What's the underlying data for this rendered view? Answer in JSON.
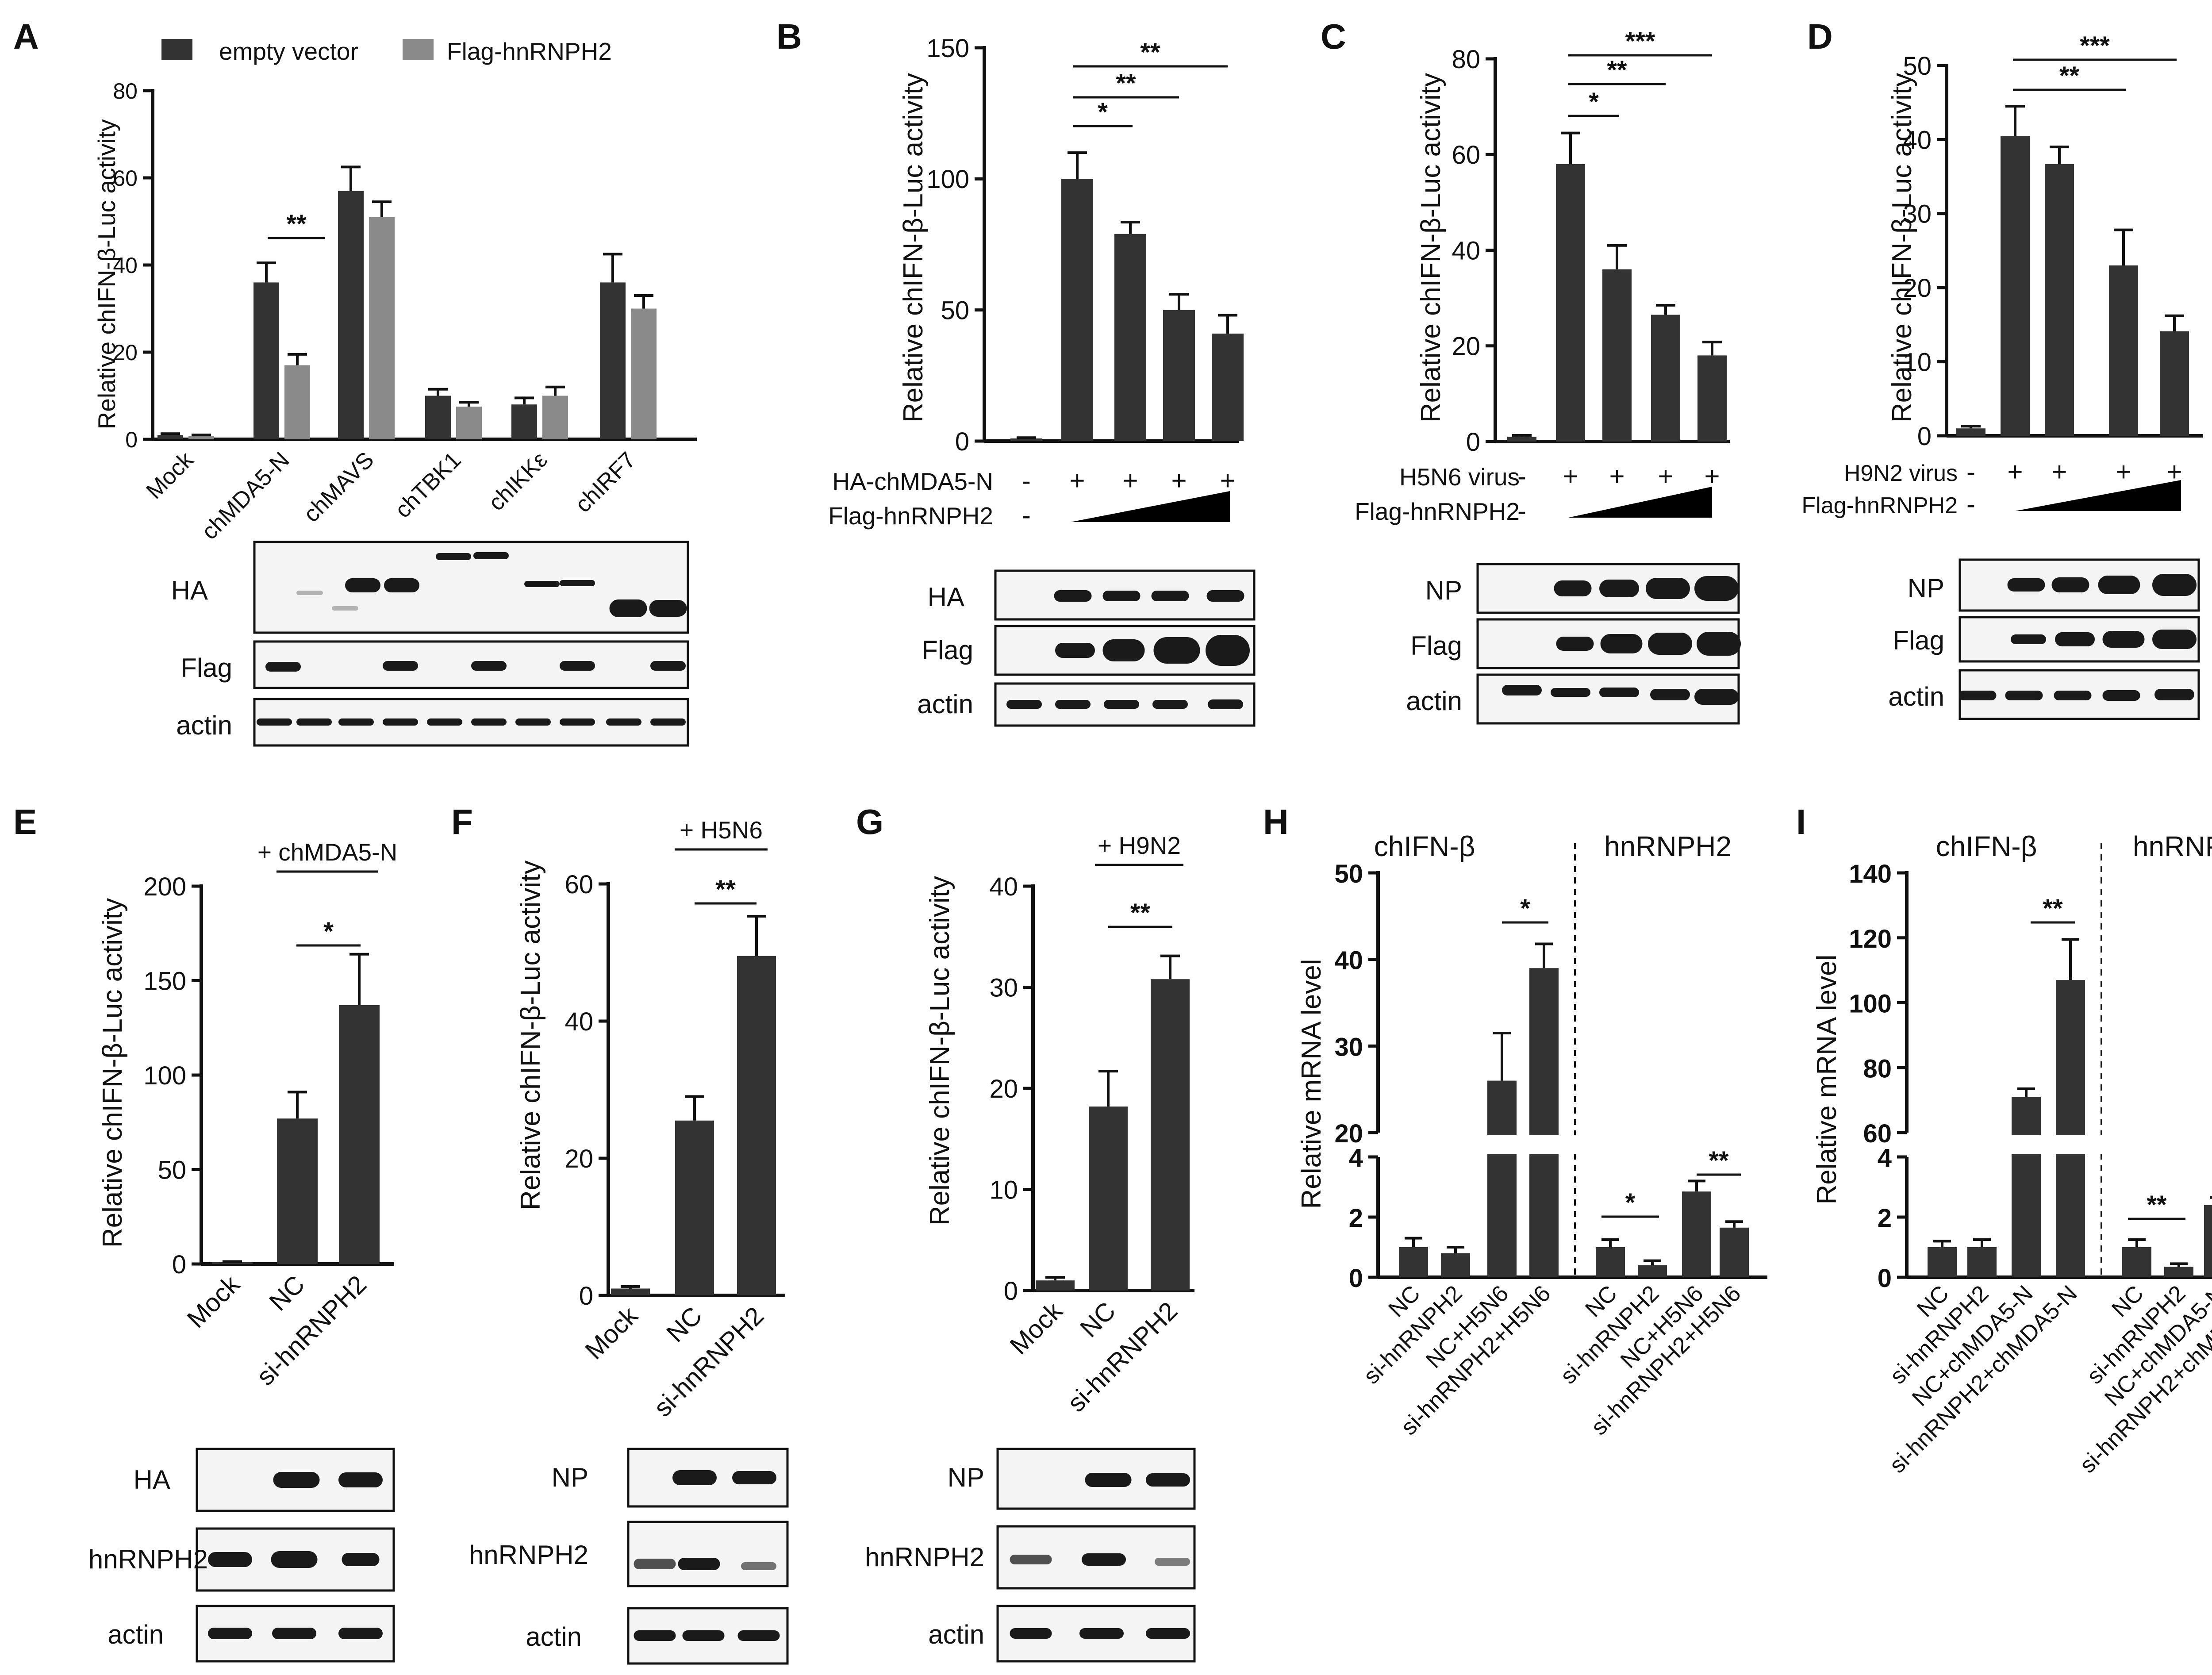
{
  "colors": {
    "dark": "#333333",
    "light": "#8a8a8a",
    "band": "#1a1a1a"
  },
  "panels": [
    {
      "id": "A",
      "letter": "A",
      "ylabel": "Relative chIFN-β-Luc activity",
      "legend": [
        "empty vector",
        "Flag-hnRNPH2"
      ],
      "chart_data": {
        "type": "bar",
        "categories": [
          "Mock",
          "chMDA5-N",
          "chMAVS",
          "chTBK1",
          "chIKKε",
          "chIRF7"
        ],
        "series": [
          {
            "name": "empty vector",
            "values": [
              1,
              36,
              57,
              10,
              8,
              36
            ],
            "errors": [
              0.3,
              4.5,
              5.5,
              1.5,
              1.5,
              6.5
            ]
          },
          {
            "name": "Flag-hnRNPH2",
            "values": [
              0.8,
              17,
              51,
              7.5,
              10,
              30
            ],
            "errors": [
              0.2,
              2.5,
              3.5,
              1,
              2,
              3
            ]
          }
        ],
        "ylim": [
          0,
          80
        ],
        "yticks": [
          0,
          20,
          40,
          60,
          80
        ]
      },
      "significance": [
        {
          "label": "**"
        }
      ],
      "blots": [
        "HA",
        "Flag",
        "actin"
      ]
    },
    {
      "id": "B",
      "letter": "B",
      "ylabel": "Relative chIFN-β-Luc activity",
      "chart_data": {
        "type": "bar",
        "categories": [
          "1",
          "2",
          "3",
          "4",
          "5"
        ],
        "values": [
          1,
          100,
          79,
          50,
          41
        ],
        "errors": [
          0.3,
          10,
          4.5,
          6,
          7
        ],
        "ylim": [
          0,
          150
        ],
        "yticks": [
          0,
          50,
          100,
          150
        ]
      },
      "significance": [
        {
          "label": "*"
        },
        {
          "label": "**"
        },
        {
          "label": "**"
        }
      ],
      "treatments": [
        {
          "label": "HA-chMDA5-N",
          "signs": [
            "-",
            "+",
            "+",
            "+",
            "+"
          ]
        },
        {
          "label": "Flag-hnRNPH2",
          "signs": [
            "-"
          ]
        }
      ],
      "blots": [
        "HA",
        "Flag",
        "actin"
      ]
    },
    {
      "id": "C",
      "letter": "C",
      "ylabel": "Relative chIFN-β-Luc activity",
      "chart_data": {
        "type": "bar",
        "categories": [
          "1",
          "2",
          "3",
          "4",
          "5"
        ],
        "values": [
          1,
          58,
          36,
          26.5,
          18
        ],
        "errors": [
          0.3,
          6.5,
          5,
          2,
          2.8
        ],
        "ylim": [
          0,
          80
        ],
        "yticks": [
          0,
          20,
          40,
          60,
          80
        ]
      },
      "significance": [
        {
          "label": "*"
        },
        {
          "label": "**"
        },
        {
          "label": "***"
        }
      ],
      "treatments": [
        {
          "label": "H5N6 virus",
          "signs": [
            "-",
            "+",
            "+",
            "+",
            "+"
          ]
        },
        {
          "label": "Flag-hnRNPH2",
          "signs": [
            "-"
          ]
        }
      ],
      "blots": [
        "NP",
        "Flag",
        "actin"
      ]
    },
    {
      "id": "D",
      "letter": "D",
      "ylabel": "Relative chIFN-β-Luc activity",
      "chart_data": {
        "type": "bar",
        "categories": [
          "1",
          "2",
          "3",
          "4",
          "5"
        ],
        "values": [
          1,
          40.5,
          36.7,
          23,
          14.1
        ],
        "errors": [
          0.3,
          4,
          2.3,
          4.8,
          2.1
        ],
        "ylim": [
          0,
          50
        ],
        "yticks": [
          0,
          10,
          20,
          30,
          40,
          50
        ]
      },
      "significance": [
        {
          "label": "**"
        },
        {
          "label": "***"
        }
      ],
      "treatments": [
        {
          "label": "H9N2 virus",
          "signs": [
            "-",
            "+",
            "+",
            "+",
            "+"
          ]
        },
        {
          "label": "Flag-hnRNPH2",
          "signs": [
            "-"
          ]
        }
      ],
      "blots": [
        "NP",
        "Flag",
        "actin"
      ]
    },
    {
      "id": "E",
      "letter": "E",
      "ylabel": "Relative chIFN-β-Luc activity",
      "chart_data": {
        "type": "bar",
        "categories": [
          "Mock",
          "NC",
          "si-hnRNPH2"
        ],
        "values": [
          1,
          77,
          137
        ],
        "errors": [
          0.3,
          14,
          27
        ],
        "ylim": [
          0,
          200
        ],
        "yticks": [
          0,
          50,
          100,
          150,
          200
        ]
      },
      "group_label": "+ chMDA5-N",
      "significance": [
        {
          "label": "*"
        }
      ],
      "blots": [
        "HA",
        "hnRNPH2",
        "actin"
      ]
    },
    {
      "id": "F",
      "letter": "F",
      "ylabel": "Relative chIFN-β-Luc activity",
      "chart_data": {
        "type": "bar",
        "categories": [
          "Mock",
          "NC",
          "si-hnRNPH2"
        ],
        "values": [
          1,
          25.5,
          49.5
        ],
        "errors": [
          0.3,
          3.5,
          5.8
        ],
        "ylim": [
          0,
          60
        ],
        "yticks": [
          0,
          20,
          40,
          60
        ]
      },
      "group_label": "+ H5N6",
      "significance": [
        {
          "label": "**"
        }
      ],
      "blots": [
        "NP",
        "hnRNPH2",
        "actin"
      ]
    },
    {
      "id": "G",
      "letter": "G",
      "ylabel": "Relative chIFN-β-Luc activity",
      "chart_data": {
        "type": "bar",
        "categories": [
          "Mock",
          "NC",
          "si-hnRNPH2"
        ],
        "values": [
          1,
          18.2,
          30.8
        ],
        "errors": [
          0.3,
          3.5,
          2.3
        ],
        "ylim": [
          0,
          40
        ],
        "yticks": [
          0,
          10,
          20,
          30,
          40
        ]
      },
      "group_label": "+ H9N2",
      "significance": [
        {
          "label": "**"
        }
      ],
      "blots": [
        "NP",
        "hnRNPH2",
        "actin"
      ]
    },
    {
      "id": "H",
      "letter": "H",
      "ylabel": "Relative mRNA level",
      "group_titles": [
        "chIFN-β",
        "hnRNPH2"
      ],
      "chart_data": {
        "type": "bar",
        "broken_axis": true,
        "categories": [
          "NC",
          "si-hnRNPH2",
          "NC+H5N6",
          "si-hnRNPH2+H5N6",
          "NC",
          "si-hnRNPH2",
          "NC+H5N6",
          "si-hnRNPH2+H5N6"
        ],
        "values": [
          1,
          0.8,
          26,
          39,
          1,
          0.4,
          2.85,
          1.65
        ],
        "errors": [
          0.3,
          0.2,
          5.5,
          2.8,
          0.25,
          0.15,
          0.35,
          0.2
        ],
        "lower_ylim": [
          0,
          4
        ],
        "lower_yticks": [
          0,
          2,
          4
        ],
        "upper_ylim": [
          20,
          50
        ],
        "upper_yticks": [
          20,
          30,
          40,
          50
        ]
      },
      "significance": [
        {
          "label": "*"
        },
        {
          "label": "*"
        },
        {
          "label": "**"
        }
      ]
    },
    {
      "id": "I",
      "letter": "I",
      "ylabel": "Relative mRNA level",
      "group_titles": [
        "chIFN-β",
        "hnRNPH2"
      ],
      "chart_data": {
        "type": "bar",
        "broken_axis": true,
        "categories": [
          "NC",
          "si-hnRNPH2",
          "NC+chMDA5-N",
          "si-hnRNPH2+chMDA5-N",
          "NC",
          "si-hnRNPH2",
          "NC+chMDA5-N",
          "si-hnRNPH2+chMDA5-N"
        ],
        "values": [
          1,
          1,
          71,
          107,
          1,
          0.35,
          2.4,
          1.25
        ],
        "errors": [
          0.2,
          0.25,
          2.5,
          12.5,
          0.25,
          0.1,
          0.25,
          0.2
        ],
        "lower_ylim": [
          0,
          4
        ],
        "lower_yticks": [
          0,
          2,
          4
        ],
        "upper_ylim": [
          60,
          140
        ],
        "upper_yticks": [
          60,
          80,
          100,
          120,
          140
        ]
      },
      "significance": [
        {
          "label": "**"
        },
        {
          "label": "**"
        },
        {
          "label": "**"
        }
      ]
    }
  ]
}
